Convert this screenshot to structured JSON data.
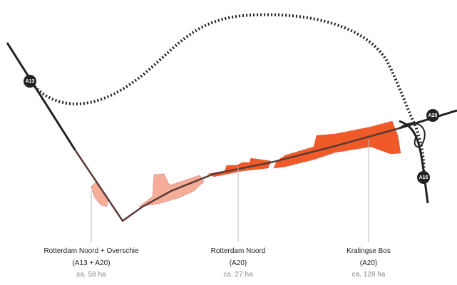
{
  "roads": [
    "A13",
    "A20",
    "A16"
  ],
  "areas": [
    {
      "name": "Rotterdam Noord + Overschie",
      "road": "(A13 + A20)",
      "size": "ca. 58 ha"
    },
    {
      "name": "Rotterdam Noord",
      "road": "(A20)",
      "size": "ca. 27 ha"
    },
    {
      "name": "Kralingse Bos",
      "road": "(A20)",
      "size": "ca. 128 ha"
    }
  ]
}
